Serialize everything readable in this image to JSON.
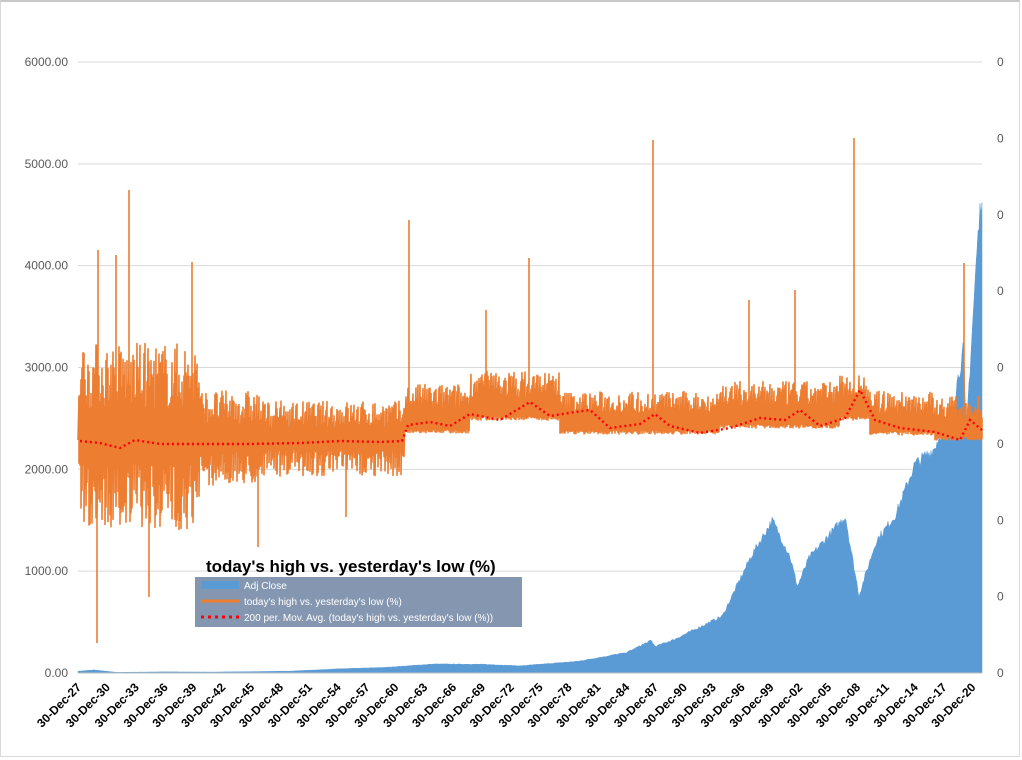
{
  "chart_data": {
    "type": "line",
    "title": "today's high vs. yesterday's low (%)",
    "y_left": {
      "min": 0,
      "max": 6000,
      "ticks": [
        "0.00",
        "1000.00",
        "2000.00",
        "3000.00",
        "4000.00",
        "5000.00",
        "6000.00"
      ]
    },
    "y_right": {
      "ticks": [
        "0",
        "0",
        "0",
        "0",
        "0",
        "0",
        "0",
        "0",
        "0"
      ]
    },
    "x_categories": [
      "30-Dec-27",
      "30-Dec-30",
      "30-Dec-33",
      "30-Dec-36",
      "30-Dec-39",
      "30-Dec-42",
      "30-Dec-45",
      "30-Dec-48",
      "30-Dec-51",
      "30-Dec-54",
      "30-Dec-57",
      "30-Dec-60",
      "30-Dec-63",
      "30-Dec-66",
      "30-Dec-69",
      "30-Dec-72",
      "30-Dec-75",
      "30-Dec-78",
      "30-Dec-81",
      "30-Dec-84",
      "30-Dec-87",
      "30-Dec-90",
      "30-Dec-93",
      "30-Dec-96",
      "30-Dec-99",
      "30-Dec-02",
      "30-Dec-05",
      "30-Dec-08",
      "30-Dec-11",
      "30-Dec-14",
      "30-Dec-17",
      "30-Dec-20"
    ],
    "grid": true,
    "legend_placement": "center-left",
    "series": [
      {
        "name": "Adj Close",
        "type": "area",
        "axis": "left",
        "color": "#5b9bd5",
        "x": [
          1927.99,
          1929.7,
          1932.0,
          1937.0,
          1942.0,
          1945.0,
          1950.0,
          1955.0,
          1960.0,
          1965.0,
          1970.0,
          1974.0,
          1980.0,
          1985.0,
          1987.6,
          1988.0,
          1990.0,
          1995.0,
          1998.0,
          2000.2,
          2002.0,
          2002.8,
          2004.0,
          2007.8,
          2008.2,
          2009.2,
          2011.0,
          2013.0,
          2015.0,
          2017.0,
          2019.0,
          2020.1,
          2020.3,
          2021.5,
          2021.99
        ],
        "y": [
          17,
          30,
          6,
          11,
          9,
          12,
          18,
          40,
          55,
          88,
          85,
          70,
          115,
          200,
          320,
          260,
          330,
          560,
          1150,
          1500,
          1150,
          850,
          1130,
          1540,
          1300,
          760,
          1300,
          1550,
          2050,
          2200,
          2650,
          3200,
          2300,
          4200,
          4750
        ]
      },
      {
        "name": "today's high vs. yesterday's low (%)",
        "type": "line",
        "axis": "right",
        "color": "#ed7d31"
      },
      {
        "name": "200 per. Mov. Avg. (today's high vs. yesterday's low (%))",
        "type": "trendline",
        "axis": "right",
        "color": "#ff0000",
        "dash": "dotted"
      }
    ]
  },
  "legend": {
    "items": [
      {
        "label": "Adj Close",
        "color": "#5b9bd5"
      },
      {
        "label": "today's high vs. yesterday's low (%)",
        "color": "#ed7d31"
      },
      {
        "label": "200 per. Mov. Avg. (today's high vs. yesterday's low (%))",
        "color": "#ff0000"
      }
    ]
  }
}
